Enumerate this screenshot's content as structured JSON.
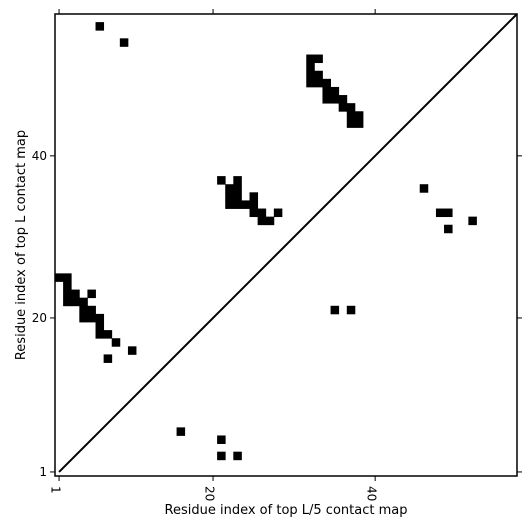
{
  "chart_data": {
    "type": "heatmap",
    "title": "",
    "xlabel": "Residue index of top L/5 contact map",
    "ylabel": "Residue index of top L contact map",
    "xlim": [
      0.5,
      57.5
    ],
    "ylim": [
      0.5,
      57.5
    ],
    "x_ticks": [
      1,
      20,
      40
    ],
    "y_ticks": [
      1,
      20,
      40
    ],
    "x_tick_labels": [
      "1",
      "20",
      "40"
    ],
    "y_tick_labels": [
      "1",
      "20",
      "40"
    ],
    "diagonal": true,
    "grid": false,
    "color": "#000000",
    "cells": [
      [
        6,
        56
      ],
      [
        9,
        54
      ],
      [
        32,
        52
      ],
      [
        33,
        52
      ],
      [
        32,
        51
      ],
      [
        32,
        50
      ],
      [
        33,
        50
      ],
      [
        32,
        49
      ],
      [
        33,
        49
      ],
      [
        34,
        49
      ],
      [
        34,
        48
      ],
      [
        35,
        48
      ],
      [
        34,
        47
      ],
      [
        35,
        47
      ],
      [
        36,
        47
      ],
      [
        36,
        46
      ],
      [
        37,
        46
      ],
      [
        37,
        45
      ],
      [
        38,
        45
      ],
      [
        37,
        44
      ],
      [
        38,
        44
      ],
      [
        21,
        37
      ],
      [
        23,
        37
      ],
      [
        22,
        36
      ],
      [
        23,
        36
      ],
      [
        22,
        35
      ],
      [
        23,
        35
      ],
      [
        25,
        35
      ],
      [
        22,
        34
      ],
      [
        23,
        34
      ],
      [
        24,
        34
      ],
      [
        25,
        34
      ],
      [
        25,
        33
      ],
      [
        26,
        33
      ],
      [
        28,
        33
      ],
      [
        26,
        32
      ],
      [
        27,
        32
      ],
      [
        1,
        25
      ],
      [
        2,
        25
      ],
      [
        2,
        24
      ],
      [
        2,
        23
      ],
      [
        3,
        23
      ],
      [
        5,
        23
      ],
      [
        2,
        22
      ],
      [
        3,
        22
      ],
      [
        4,
        22
      ],
      [
        4,
        21
      ],
      [
        5,
        21
      ],
      [
        4,
        20
      ],
      [
        5,
        20
      ],
      [
        6,
        20
      ],
      [
        6,
        19
      ],
      [
        6,
        18
      ],
      [
        7,
        18
      ],
      [
        8,
        17
      ],
      [
        10,
        16
      ],
      [
        7,
        15
      ],
      [
        16,
        6
      ],
      [
        21,
        5
      ],
      [
        21,
        3
      ],
      [
        23,
        3
      ],
      [
        35,
        21
      ],
      [
        37,
        21
      ],
      [
        46,
        36
      ],
      [
        48,
        33
      ],
      [
        49,
        33
      ],
      [
        52,
        32
      ],
      [
        49,
        31
      ]
    ]
  }
}
